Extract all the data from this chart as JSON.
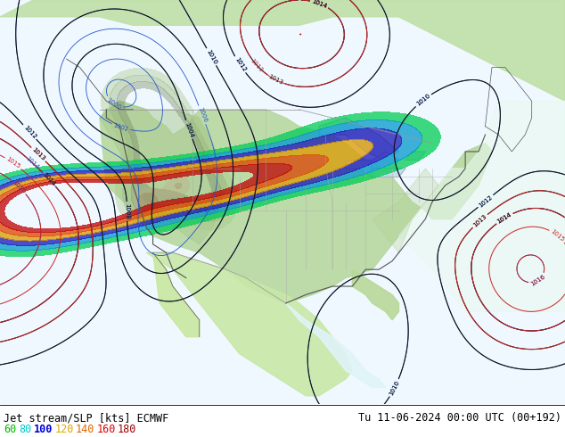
{
  "title_left": "Jet stream/SLP [kts] ECMWF",
  "title_right": "Tu 11-06-2024 00:00 UTC (00+192)",
  "legend_values": [
    "60",
    "80",
    "100",
    "120",
    "140",
    "160",
    "180"
  ],
  "legend_colors": [
    "#00bb00",
    "#00cccc",
    "#0000dd",
    "#ddaa00",
    "#dd6600",
    "#dd0000",
    "#990000"
  ],
  "fig_width": 6.34,
  "fig_height": 4.9,
  "dpi": 100,
  "land_color_light": "#c8e8b0",
  "land_color_dark": "#a0c890",
  "ocean_color": "#d8eef8",
  "mountain_color": "#b8d898",
  "border_color": "#888888",
  "isobar_blue": "#2244cc",
  "isobar_black": "#000000",
  "isobar_red": "#cc2222",
  "bg_white": "#ffffff"
}
